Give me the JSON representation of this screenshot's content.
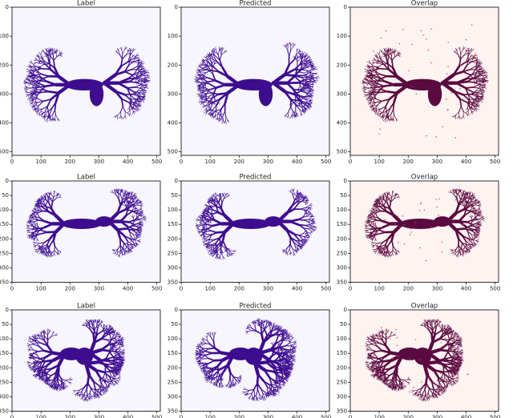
{
  "figure": {
    "panels": [
      {
        "title": "Label",
        "xlim": [
          0,
          512
        ],
        "ylim": [
          0,
          512
        ],
        "xticks": [
          0,
          100,
          200,
          300,
          400,
          500
        ],
        "yticks": [
          0,
          100,
          200,
          300,
          400,
          500
        ]
      },
      {
        "title": "Predicted",
        "xlim": [
          0,
          512
        ],
        "ylim": [
          0,
          512
        ],
        "xticks": [
          0,
          100,
          200,
          300,
          400,
          500
        ],
        "yticks": [
          0,
          100,
          200,
          300,
          400,
          500
        ]
      },
      {
        "title": "Overlap",
        "xlim": [
          0,
          512
        ],
        "ylim": [
          0,
          512
        ],
        "xticks": [
          0,
          100,
          200,
          300,
          400,
          500
        ],
        "yticks": [
          0,
          100,
          200,
          300,
          400,
          500
        ]
      },
      {
        "title": "Label",
        "xlim": [
          0,
          512
        ],
        "ylim": [
          0,
          350
        ],
        "xticks": [
          0,
          100,
          200,
          300,
          400,
          500
        ],
        "yticks": [
          0,
          50,
          100,
          150,
          200,
          250,
          300,
          350
        ]
      },
      {
        "title": "Predicted",
        "xlim": [
          0,
          512
        ],
        "ylim": [
          0,
          350
        ],
        "xticks": [
          0,
          100,
          200,
          300,
          400,
          500
        ],
        "yticks": [
          0,
          50,
          100,
          150,
          200,
          250,
          300,
          350
        ]
      },
      {
        "title": "Overlap",
        "xlim": [
          0,
          512
        ],
        "ylim": [
          0,
          350
        ],
        "xticks": [
          0,
          100,
          200,
          300,
          400,
          500
        ],
        "yticks": [
          0,
          50,
          100,
          150,
          200,
          250,
          300,
          350
        ]
      },
      {
        "title": "Label",
        "xlim": [
          0,
          512
        ],
        "ylim": [
          0,
          350
        ],
        "xticks": [
          0,
          100,
          200,
          300,
          400,
          500
        ],
        "yticks": [
          0,
          50,
          100,
          150,
          200,
          250,
          300,
          350
        ]
      },
      {
        "title": "Predicted",
        "xlim": [
          0,
          512
        ],
        "ylim": [
          0,
          350
        ],
        "xticks": [
          0,
          100,
          200,
          300,
          400,
          500
        ],
        "yticks": [
          0,
          50,
          100,
          150,
          200,
          250,
          300,
          350
        ]
      },
      {
        "title": "Overlap",
        "xlim": [
          0,
          512
        ],
        "ylim": [
          0,
          350
        ],
        "xticks": [
          0,
          100,
          200,
          300,
          400,
          500
        ],
        "yticks": [
          0,
          50,
          100,
          150,
          200,
          250,
          300,
          350
        ]
      }
    ]
  }
}
